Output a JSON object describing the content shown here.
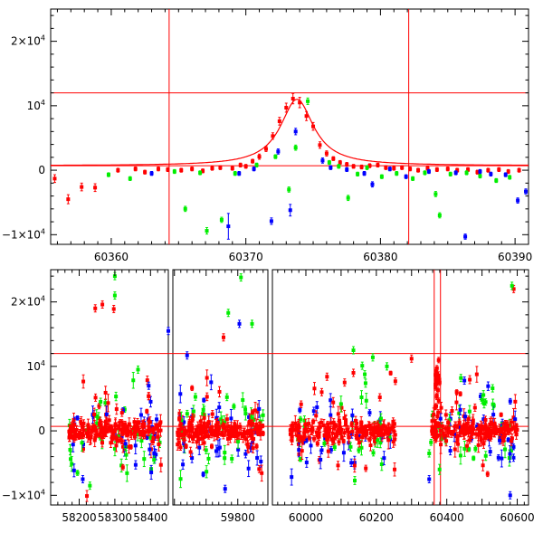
{
  "chart_data": [
    {
      "type": "scatter",
      "panel": "top",
      "xlim": [
        60355.5,
        60391
      ],
      "ylim": [
        -11500,
        25000
      ],
      "x_ticks": [
        60360,
        60370,
        60380,
        60390
      ],
      "y_ticks": [
        {
          "value": 20000,
          "mantissa": "2×10",
          "exp": "4"
        },
        {
          "value": 10000,
          "mantissa": "10",
          "exp": "4"
        },
        {
          "value": 0,
          "mantissa": "0",
          "exp": ""
        },
        {
          "value": -10000,
          "mantissa": "−1×10",
          "exp": "4"
        }
      ],
      "hlines": [
        12000,
        700
      ],
      "vlines": [
        60364.3,
        60382.1
      ],
      "fit_curve": {
        "color": "#ff0000",
        "peak_x": 60373.8,
        "peak_y": 11000,
        "baseline": 700
      },
      "series": [
        {
          "color": "#ff0000",
          "points": [
            [
              60355.8,
              -1300,
              600
            ],
            [
              60356.8,
              -4500,
              700
            ],
            [
              60357.8,
              -2600,
              600
            ],
            [
              60358.8,
              -2700,
              600
            ],
            [
              60360.5,
              0,
              300
            ],
            [
              60361.8,
              200,
              300
            ],
            [
              60362.5,
              -300,
              300
            ],
            [
              60363.5,
              200,
              300
            ],
            [
              60364.2,
              100,
              300
            ],
            [
              60365.2,
              0,
              300
            ],
            [
              60366.0,
              200,
              300
            ],
            [
              60366.8,
              -100,
              300
            ],
            [
              60367.5,
              300,
              300
            ],
            [
              60368.1,
              400,
              300
            ],
            [
              60369.0,
              300,
              300
            ],
            [
              60369.6,
              800,
              300
            ],
            [
              60370.0,
              600,
              300
            ],
            [
              60370.5,
              1400,
              300
            ],
            [
              60371.0,
              2100,
              400
            ],
            [
              60371.5,
              3300,
              400
            ],
            [
              60372.0,
              5300,
              500
            ],
            [
              60372.5,
              7600,
              600
            ],
            [
              60373.0,
              9700,
              700
            ],
            [
              60373.5,
              11100,
              800
            ],
            [
              60374.0,
              10500,
              800
            ],
            [
              60374.5,
              8400,
              700
            ],
            [
              60375.0,
              6800,
              600
            ],
            [
              60375.5,
              3900,
              500
            ],
            [
              60376.0,
              2600,
              400
            ],
            [
              60376.5,
              1800,
              300
            ],
            [
              60377.0,
              1200,
              300
            ],
            [
              60377.5,
              900,
              300
            ],
            [
              60378.0,
              600,
              300
            ],
            [
              60378.6,
              500,
              300
            ],
            [
              60379.2,
              700,
              300
            ],
            [
              60379.8,
              800,
              300
            ],
            [
              60380.4,
              400,
              300
            ],
            [
              60381.0,
              300,
              300
            ],
            [
              60381.6,
              400,
              300
            ],
            [
              60382.2,
              200,
              300
            ],
            [
              60382.8,
              0,
              300
            ],
            [
              60383.5,
              300,
              300
            ],
            [
              60384.2,
              100,
              300
            ],
            [
              60385.0,
              200,
              300
            ],
            [
              60385.7,
              0,
              300
            ],
            [
              60386.5,
              100,
              300
            ],
            [
              60387.2,
              -300,
              300
            ],
            [
              60388.0,
              0,
              300
            ],
            [
              60388.8,
              100,
              300
            ],
            [
              60389.5,
              -200,
              300
            ],
            [
              60390.3,
              0,
              300
            ]
          ]
        },
        {
          "color": "#00ee00",
          "points": [
            [
              60364.7,
              -200,
              300
            ],
            [
              60365.5,
              -6000,
              400
            ],
            [
              60366.6,
              -400,
              300
            ],
            [
              60367.1,
              -9400,
              500
            ],
            [
              60368.2,
              -7700,
              400
            ],
            [
              60369.2,
              -500,
              300
            ],
            [
              60370.8,
              800,
              300
            ],
            [
              60372.2,
              2100,
              300
            ],
            [
              60373.2,
              -3000,
              400
            ],
            [
              60373.7,
              3500,
              400
            ],
            [
              60374.6,
              10700,
              500
            ],
            [
              60376.2,
              1200,
              300
            ],
            [
              60376.9,
              600,
              300
            ],
            [
              60377.6,
              -4300,
              400
            ],
            [
              60378.3,
              -600,
              300
            ],
            [
              60379.0,
              400,
              300
            ],
            [
              60380.1,
              -1000,
              300
            ],
            [
              60381.2,
              -500,
              300
            ],
            [
              60382.4,
              -1300,
              300
            ],
            [
              60383.3,
              -400,
              300
            ],
            [
              60384.1,
              -3700,
              400
            ],
            [
              60384.4,
              -7000,
              400
            ],
            [
              60385.2,
              -600,
              300
            ],
            [
              60386.4,
              -400,
              300
            ],
            [
              60387.4,
              -900,
              300
            ],
            [
              60388.6,
              -1600,
              300
            ],
            [
              60389.6,
              -1100,
              300
            ],
            [
              60361.4,
              -1300,
              300
            ],
            [
              60359.8,
              -700,
              300
            ]
          ]
        },
        {
          "color": "#0000ff",
          "points": [
            [
              60363.0,
              -500,
              300
            ],
            [
              60368.7,
              -8700,
              2000
            ],
            [
              60369.5,
              -500,
              300
            ],
            [
              60370.6,
              200,
              300
            ],
            [
              60371.9,
              -7900,
              500
            ],
            [
              60372.4,
              2900,
              400
            ],
            [
              60373.3,
              -6200,
              900
            ],
            [
              60373.7,
              6000,
              500
            ],
            [
              60375.7,
              1500,
              400
            ],
            [
              60376.3,
              400,
              300
            ],
            [
              60377.5,
              100,
              300
            ],
            [
              60378.8,
              -500,
              300
            ],
            [
              60379.4,
              -2200,
              400
            ],
            [
              60380.7,
              200,
              300
            ],
            [
              60381.9,
              -1000,
              300
            ],
            [
              60383.6,
              -200,
              300
            ],
            [
              60385.6,
              -400,
              300
            ],
            [
              60386.3,
              -10300,
              400
            ],
            [
              60387.4,
              -200,
              300
            ],
            [
              60388.2,
              -600,
              300
            ],
            [
              60389.3,
              -700,
              300
            ],
            [
              60390.2,
              -4700,
              400
            ],
            [
              60390.8,
              -3300,
              400
            ]
          ]
        }
      ]
    },
    {
      "type": "scatter",
      "panel": "bottom",
      "segments": [
        {
          "xlim": [
            58120,
            58450
          ],
          "x_ticks": [
            58200,
            58300,
            58400
          ]
        },
        {
          "xlim": [
            59595,
            59895
          ],
          "x_ticks": [
            59800
          ]
        },
        {
          "xlim": [
            59905,
            60632
          ],
          "x_ticks": [
            60000,
            60200,
            60400,
            60600
          ]
        }
      ],
      "ylim": [
        -11500,
        25000
      ],
      "y_ticks": [
        {
          "value": 20000,
          "mantissa": "2×10",
          "exp": "4"
        },
        {
          "value": 10000,
          "mantissa": "10",
          "exp": "4"
        },
        {
          "value": 0,
          "mantissa": "0",
          "exp": ""
        },
        {
          "value": -10000,
          "mantissa": "−1×10",
          "exp": "4"
        }
      ],
      "hlines": [
        12000,
        700
      ],
      "vlines": [
        60364.3,
        60382.1
      ],
      "clusters": [
        {
          "xrange": [
            58170,
            58430
          ],
          "color": "#ff0000",
          "count": 150,
          "core_sd": 800
        },
        {
          "xrange": [
            59610,
            59880
          ],
          "color": "#ff0000",
          "count": 150,
          "core_sd": 800
        },
        {
          "xrange": [
            59955,
            60255
          ],
          "color": "#ff0000",
          "count": 150,
          "core_sd": 800
        },
        {
          "xrange": [
            60355,
            60600
          ],
          "color": "#ff0000",
          "count": 150,
          "core_sd": 800
        }
      ],
      "outliers": [
        {
          "color": "#ff0000",
          "points": [
            [
              58245,
              19000
            ],
            [
              58265,
              19600
            ],
            [
              58297,
              18900
            ],
            [
              58395,
              5400
            ],
            [
              58320,
              2800
            ],
            [
              59755,
              14500
            ],
            [
              59720,
              2600
            ],
            [
              60045,
              6000
            ],
            [
              60060,
              8400
            ],
            [
              60110,
              7500
            ],
            [
              60135,
              9000
            ],
            [
              60300,
              11200
            ],
            [
              60376,
              8600
            ],
            [
              60590,
              22000
            ],
            [
              60480,
              3600
            ],
            [
              60510,
              1700
            ],
            [
              60210,
              5200
            ],
            [
              60095,
              1600
            ],
            [
              58355,
              1400
            ]
          ]
        },
        {
          "color": "#00ee00",
          "points": [
            [
              58300,
              24000
            ],
            [
              58300,
              21000
            ],
            [
              58365,
              9500
            ],
            [
              58260,
              4500
            ],
            [
              58330,
              -2500
            ],
            [
              58230,
              -8500
            ],
            [
              59770,
              18300
            ],
            [
              59845,
              16600
            ],
            [
              59810,
              23800
            ],
            [
              60135,
              12500
            ],
            [
              60160,
              10100
            ],
            [
              60190,
              11400
            ],
            [
              60230,
              10000
            ],
            [
              60585,
              22500
            ],
            [
              60440,
              8200
            ],
            [
              60500,
              4800
            ],
            [
              60530,
              6600
            ],
            [
              58410,
              -4500
            ],
            [
              59700,
              -3000
            ],
            [
              60350,
              -3500
            ]
          ]
        },
        {
          "color": "#0000ff",
          "points": [
            [
              58450,
              15500
            ],
            [
              58395,
              7000
            ],
            [
              58330,
              -2000
            ],
            [
              59640,
              11700
            ],
            [
              59805,
              16600
            ],
            [
              60450,
              7800
            ],
            [
              60550,
              -1500
            ],
            [
              60580,
              -10000
            ],
            [
              60045,
              -3000
            ],
            [
              60350,
              -7500
            ],
            [
              58210,
              -7500
            ],
            [
              59760,
              -9000
            ]
          ]
        }
      ]
    }
  ]
}
